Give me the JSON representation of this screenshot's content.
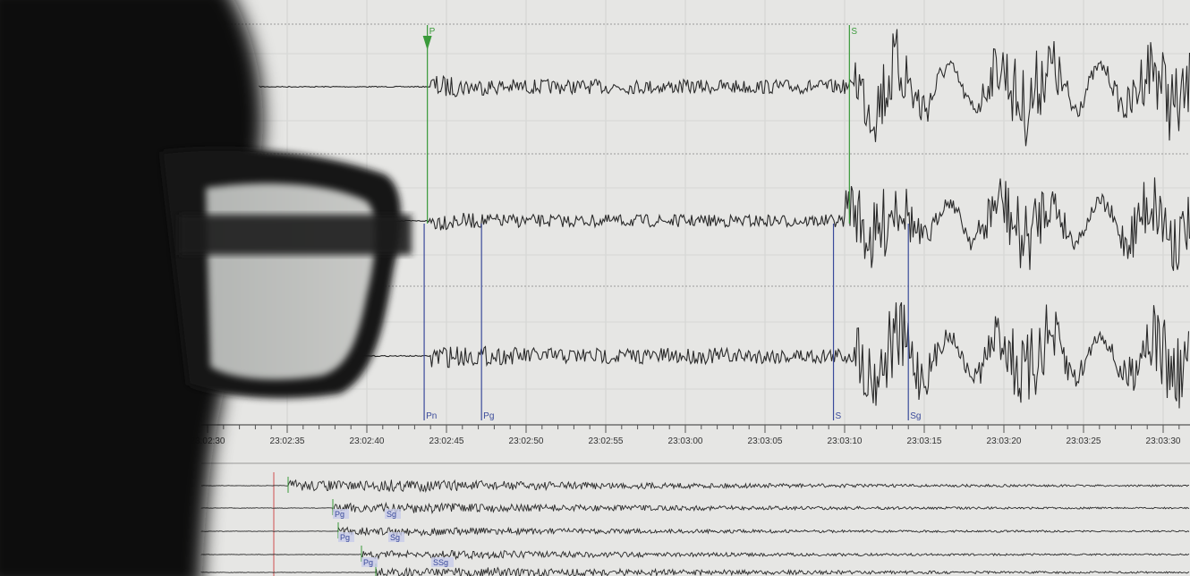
{
  "seismogram": {
    "time_ticks": [
      "23:02:30",
      "23:02:35",
      "23:02:40",
      "23:02:45",
      "23:02:50",
      "23:02:55",
      "23:03:00",
      "23:03:05",
      "23:03:10",
      "23:03:15",
      "23:03:20",
      "23:03:25",
      "23:03:30"
    ],
    "top_trace_phases": [
      {
        "label": "P",
        "time": "23:02:43.8"
      },
      {
        "label": "S",
        "time": "23:03:10.3"
      }
    ],
    "lower_trace_phases": [
      {
        "label": "Pn",
        "time": "23:02:43.6"
      },
      {
        "label": "Pg",
        "time": "23:02:47.2"
      },
      {
        "label": "S",
        "time": "23:03:09.3"
      },
      {
        "label": "Sg",
        "time": "23:03:14.0"
      }
    ],
    "overview_phases": [
      "Pg",
      "Sg",
      "Pg",
      "Sg",
      "Pg",
      "SSg"
    ],
    "colors": {
      "background": "#e6e6e4",
      "trace": "#2a2a2a",
      "p_marker": "#3a9a3a",
      "phase_marker": "#3a4a9a",
      "pick_line": "#d05050",
      "silhouette": "#111111"
    }
  }
}
